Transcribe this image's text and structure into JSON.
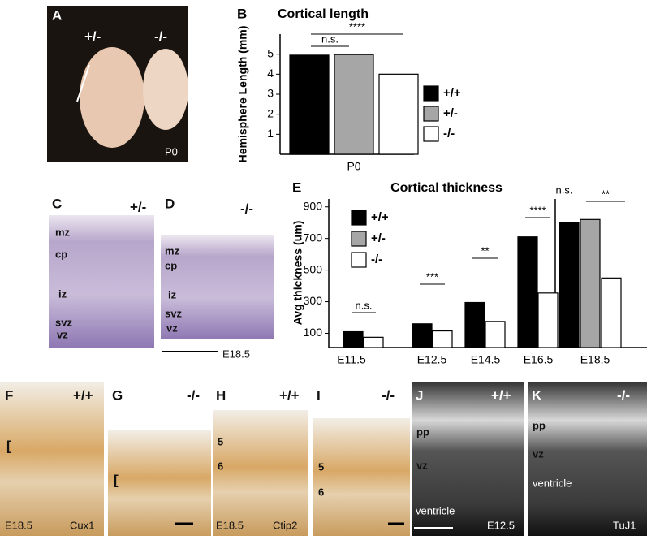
{
  "panels": [
    {
      "letter": "A",
      "texts": [
        "+/-",
        "-/-",
        "P0"
      ]
    },
    {
      "letter": "C",
      "texts": [
        "+/-",
        "mz",
        "cp",
        "iz",
        "svz",
        "vz"
      ]
    },
    {
      "letter": "D",
      "texts": [
        "-/-",
        "mz",
        "cp",
        "iz",
        "svz",
        "vz",
        "E18.5"
      ]
    },
    {
      "letter": "F",
      "texts": [
        "+/+",
        "[",
        "E18.5",
        "Cux1"
      ]
    },
    {
      "letter": "G",
      "texts": [
        "-/-",
        "["
      ]
    },
    {
      "letter": "H",
      "texts": [
        "+/+",
        "5",
        "6",
        "E18.5",
        "Ctip2"
      ]
    },
    {
      "letter": "I",
      "texts": [
        "-/-",
        "5",
        "6"
      ]
    },
    {
      "letter": "J",
      "texts": [
        "+/+",
        "pp",
        "vz",
        "ventricle",
        "E12.5"
      ]
    },
    {
      "letter": "K",
      "texts": [
        "-/-",
        "pp",
        "vz",
        "ventricle",
        "TuJ1"
      ]
    }
  ],
  "chart_data": [
    {
      "type": "bar",
      "panel": "B",
      "title": "Cortical length",
      "y_label": "Hemisphere Length (mm)",
      "categories": [
        "P0"
      ],
      "ylim": [
        0,
        6
      ],
      "yticks": [
        1,
        2,
        3,
        4,
        5
      ],
      "series": [
        {
          "name": "+/+",
          "color": "#000000",
          "values": [
            4.95
          ]
        },
        {
          "name": "+/-",
          "color": "#a6a6a6",
          "values": [
            4.98
          ]
        },
        {
          "name": "-/-",
          "color": "#ffffff",
          "values": [
            4.0
          ]
        }
      ],
      "annotations": [
        "n.s.",
        "****"
      ]
    },
    {
      "type": "bar",
      "panel": "E",
      "title": "Cortical thickness",
      "y_label": "Avg thickness (um)",
      "categories": [
        "E11.5",
        "E12.5",
        "E14.5",
        "E16.5",
        "E18.5"
      ],
      "ylim": [
        10,
        950
      ],
      "yticks": [
        100,
        300,
        500,
        700,
        900
      ],
      "series": [
        {
          "name": "+/+",
          "color": "#000000",
          "values": [
            110,
            160,
            295,
            710,
            800
          ]
        },
        {
          "name": "+/-",
          "color": "#a6a6a6",
          "values": [
            null,
            null,
            null,
            null,
            820
          ]
        },
        {
          "name": "-/-",
          "color": "#ffffff",
          "values": [
            75,
            115,
            175,
            355,
            450
          ]
        }
      ],
      "annotations": [
        "n.s.",
        "***",
        "**",
        "****",
        "n.s.",
        "**"
      ]
    }
  ]
}
